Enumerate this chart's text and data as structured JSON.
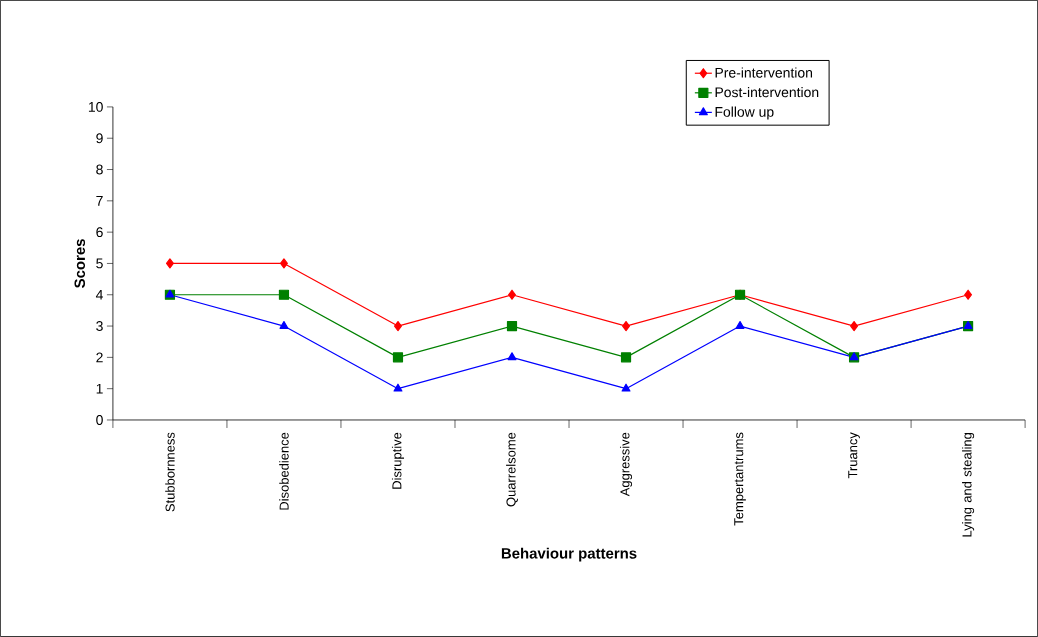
{
  "chart_data": {
    "type": "line",
    "xlabel": "Behaviour patterns",
    "ylabel": "Scores",
    "categories": [
      "Stubbornness",
      "Disobedience",
      "Disruptive",
      "Quarrelsome",
      "Aggressive",
      "Tempertantrums",
      "Truancy",
      "Lying and stealing"
    ],
    "series": [
      {
        "name": "Pre-intervention",
        "color": "#ff0000",
        "marker": "diamond",
        "values": [
          5,
          5,
          3,
          4,
          3,
          4,
          3,
          4
        ]
      },
      {
        "name": "Post-intervention",
        "color": "#008000",
        "marker": "square",
        "values": [
          4,
          4,
          2,
          3,
          2,
          4,
          2,
          3
        ]
      },
      {
        "name": "Follow up",
        "color": "#0000ff",
        "marker": "triangle",
        "values": [
          4,
          3,
          1,
          2,
          1,
          3,
          2,
          3
        ]
      }
    ],
    "ylim": [
      0,
      10
    ],
    "yticks": [
      0,
      1,
      2,
      3,
      4,
      5,
      6,
      7,
      8,
      9,
      10
    ],
    "grid": false,
    "legend": "top right",
    "line_style": "solid"
  }
}
